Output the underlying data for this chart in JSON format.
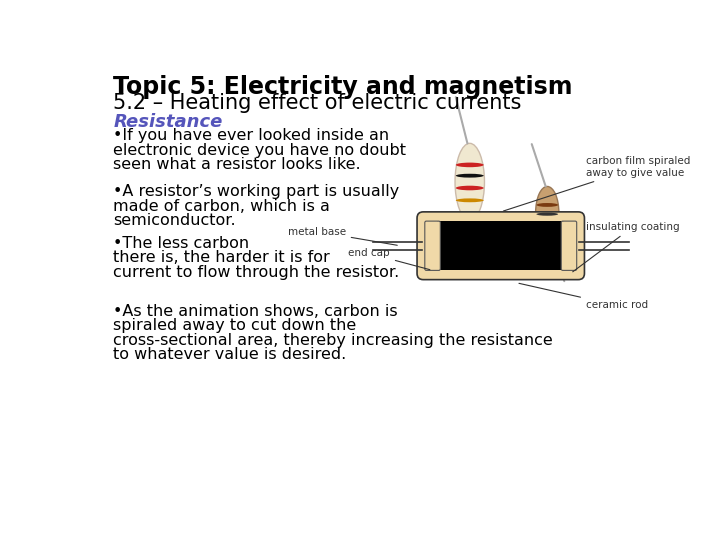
{
  "title_line1": "Topic 5: Electricity and magnetism",
  "title_line2": "5.2 – Heating effect of electric currents",
  "subtitle": "Resistance",
  "bullet_points": [
    "•If you have ever looked inside an\nelectronic device you have no doubt\nseen what a resistor looks like.",
    "•A resistor’s working part is usually\nmade of carbon, which is a\nsemiconductor.",
    "•The less carbon\nthere is, the harder it is for\ncurrent to flow through the resistor.",
    "•As the animation shows, carbon is\nspiraled away to cut down the\ncross-sectional area, thereby increasing the resistance\nto whatever value is desired."
  ],
  "background_color": "#ffffff",
  "title1_color": "#000000",
  "title2_color": "#000000",
  "subtitle_color": "#5555bb",
  "body_color": "#000000",
  "diagram_bg": "#f0d9a8",
  "diagram_inner": "#000000",
  "label_color": "#333333"
}
